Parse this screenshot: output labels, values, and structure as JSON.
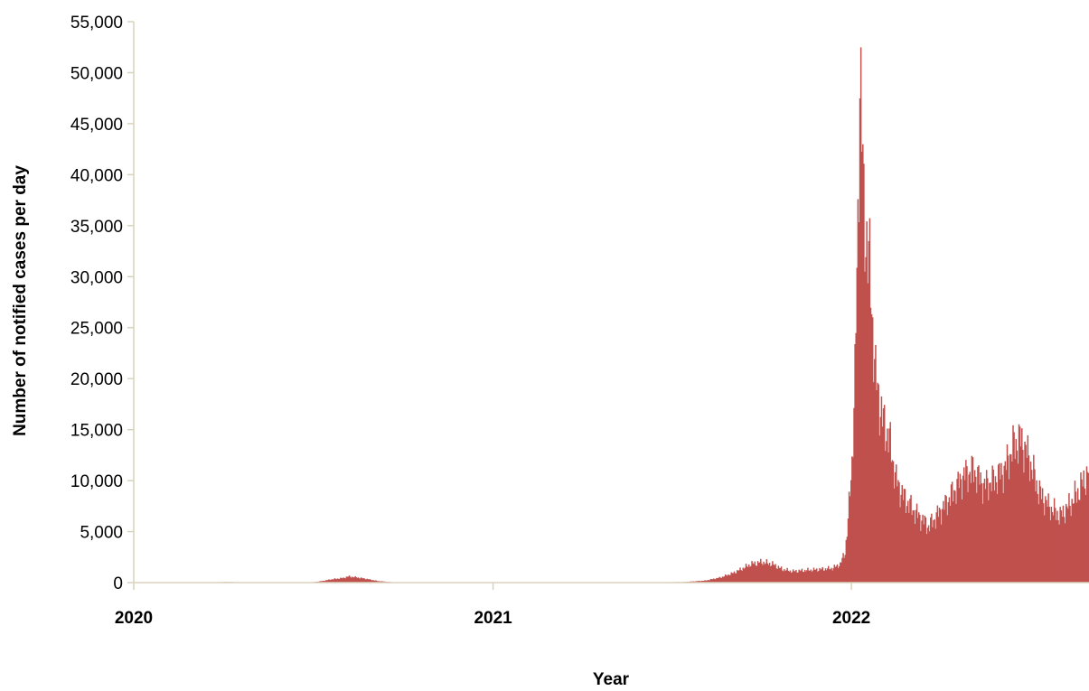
{
  "chart_data": {
    "type": "bar",
    "title": "",
    "xlabel": "Year",
    "ylabel": "Number of notified cases per day",
    "ylim": [
      0,
      55000
    ],
    "xlim": [
      "2020-01-01",
      "2022-08-31"
    ],
    "y_ticks": [
      "0",
      "5,000",
      "10,000",
      "15,000",
      "20,000",
      "25,000",
      "30,000",
      "35,000",
      "40,000",
      "45,000",
      "50,000",
      "55,000"
    ],
    "x_tick_labels": [
      {
        "label": "2020",
        "date": "2020-01-01"
      },
      {
        "label": "2021",
        "date": "2021-01-01"
      },
      {
        "label": "2022",
        "date": "2022-01-01"
      }
    ],
    "grid": false,
    "legend": "none",
    "colors": {
      "bars": "#c0504d",
      "axis": "#d9d2bb"
    },
    "series": [
      {
        "points": [
          [
            "2020-01-01",
            0
          ],
          [
            "2020-03-01",
            0
          ],
          [
            "2020-03-20",
            30
          ],
          [
            "2020-04-05",
            60
          ],
          [
            "2020-04-25",
            20
          ],
          [
            "2020-06-01",
            5
          ],
          [
            "2020-07-01",
            40
          ],
          [
            "2020-07-10",
            150
          ],
          [
            "2020-07-20",
            320
          ],
          [
            "2020-08-01",
            450
          ],
          [
            "2020-08-06",
            600
          ],
          [
            "2020-08-15",
            500
          ],
          [
            "2020-08-25",
            350
          ],
          [
            "2020-09-05",
            150
          ],
          [
            "2020-09-20",
            40
          ],
          [
            "2020-10-10",
            10
          ],
          [
            "2020-12-01",
            5
          ],
          [
            "2021-06-01",
            10
          ],
          [
            "2021-07-15",
            60
          ],
          [
            "2021-08-05",
            200
          ],
          [
            "2021-08-20",
            500
          ],
          [
            "2021-09-01",
            900
          ],
          [
            "2021-09-10",
            1300
          ],
          [
            "2021-09-20",
            1800
          ],
          [
            "2021-10-01",
            2000
          ],
          [
            "2021-10-12",
            1800
          ],
          [
            "2021-10-22",
            1300
          ],
          [
            "2021-11-01",
            1100
          ],
          [
            "2021-11-15",
            1200
          ],
          [
            "2021-12-01",
            1300
          ],
          [
            "2021-12-12",
            1400
          ],
          [
            "2021-12-20",
            1800
          ],
          [
            "2021-12-25",
            3000
          ],
          [
            "2021-12-28",
            6000
          ],
          [
            "2022-01-01",
            12000
          ],
          [
            "2022-01-04",
            20000
          ],
          [
            "2022-01-07",
            35000
          ],
          [
            "2022-01-09",
            51000
          ],
          [
            "2022-01-11",
            44000
          ],
          [
            "2022-01-13",
            36000
          ],
          [
            "2022-01-16",
            34000
          ],
          [
            "2022-01-20",
            29000
          ],
          [
            "2022-01-25",
            20000
          ],
          [
            "2022-02-01",
            16000
          ],
          [
            "2022-02-08",
            14000
          ],
          [
            "2022-02-15",
            10000
          ],
          [
            "2022-02-22",
            8500
          ],
          [
            "2022-03-01",
            7500
          ],
          [
            "2022-03-10",
            6500
          ],
          [
            "2022-03-20",
            5500
          ],
          [
            "2022-03-28",
            6500
          ],
          [
            "2022-04-05",
            7500
          ],
          [
            "2022-04-15",
            9000
          ],
          [
            "2022-04-25",
            10500
          ],
          [
            "2022-05-05",
            11000
          ],
          [
            "2022-05-15",
            9500
          ],
          [
            "2022-05-25",
            10000
          ],
          [
            "2022-06-05",
            11000
          ],
          [
            "2022-06-15",
            13500
          ],
          [
            "2022-06-22",
            14000
          ],
          [
            "2022-07-01",
            12000
          ],
          [
            "2022-07-10",
            9000
          ],
          [
            "2022-07-20",
            7500
          ],
          [
            "2022-08-01",
            6500
          ],
          [
            "2022-08-10",
            7500
          ],
          [
            "2022-08-20",
            9000
          ],
          [
            "2022-08-28",
            10500
          ],
          [
            "2022-08-31",
            11000
          ]
        ]
      }
    ]
  }
}
